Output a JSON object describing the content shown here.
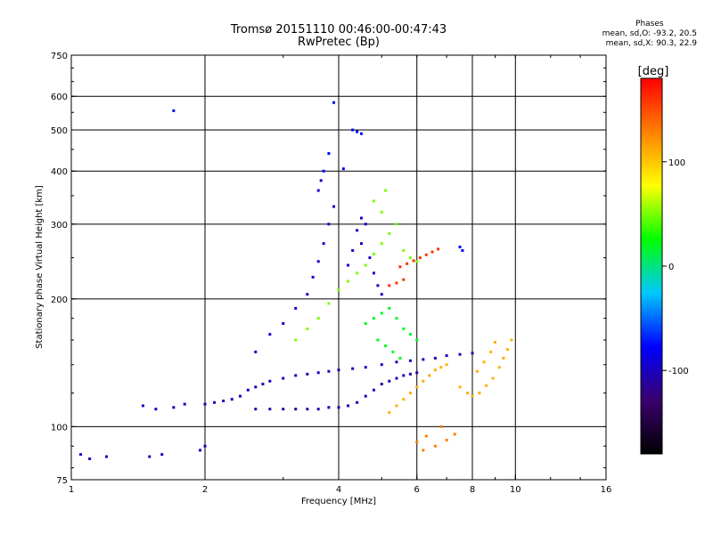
{
  "chart_data": {
    "type": "scatter",
    "title": "Tromsø 20151110 00:46:00-00:47:43",
    "subtitle": "RwPretec (Bp)",
    "xlabel": "Frequency [MHz]",
    "ylabel": "Stationary phase Virtual Height [km]",
    "x_scale": "log",
    "y_scale": "log",
    "xlim": [
      1,
      16
    ],
    "ylim": [
      75,
      750
    ],
    "x_ticks": [
      1,
      2,
      4,
      6,
      8,
      10,
      16
    ],
    "x_tick_labels": [
      "1",
      "2",
      "4",
      "6",
      "8",
      "10",
      "16"
    ],
    "x_grid": [
      2,
      4,
      6,
      8,
      10
    ],
    "y_ticks": [
      75,
      100,
      200,
      300,
      400,
      500,
      600,
      750
    ],
    "y_tick_labels": [
      "75",
      "100",
      "200",
      "300",
      "400",
      "500",
      "600",
      "750"
    ],
    "y_grid": [
      100,
      200,
      300,
      400,
      500,
      600
    ],
    "grid": true,
    "colorbar": {
      "label": "[deg]",
      "range": [
        -180,
        180
      ],
      "ticks": [
        100,
        0,
        -100
      ],
      "tick_labels": [
        "100",
        "0",
        "-100"
      ],
      "colormap": [
        "#000000",
        "#3a006e",
        "#0000ff",
        "#00c8ff",
        "#00ff00",
        "#ffff00",
        "#ff8000",
        "#ff0000"
      ]
    },
    "phases": {
      "heading": "Phases",
      "o_line": "mean, sd,O: -93.2, 20.5",
      "x_line": "mean, sd,X:  90.3, 22.9"
    },
    "series": [
      {
        "points": [
          [
            2.0,
            113
          ],
          [
            2.1,
            114
          ],
          [
            2.2,
            115
          ],
          [
            2.3,
            116
          ],
          [
            2.4,
            118
          ],
          [
            2.5,
            122
          ],
          [
            2.6,
            124
          ],
          [
            2.7,
            126
          ],
          [
            2.8,
            128
          ],
          [
            3.0,
            130
          ],
          [
            3.2,
            132
          ],
          [
            3.4,
            133
          ],
          [
            3.6,
            134
          ],
          [
            3.8,
            135
          ],
          [
            4.0,
            136
          ],
          [
            4.3,
            137
          ],
          [
            4.6,
            138
          ],
          [
            5.0,
            140
          ],
          [
            5.4,
            142
          ],
          [
            5.8,
            143
          ],
          [
            6.2,
            144
          ],
          [
            6.6,
            145
          ],
          [
            7.0,
            147
          ],
          [
            7.5,
            148
          ],
          [
            8.0,
            149
          ]
        ],
        "phase": -100
      },
      {
        "points": [
          [
            2.6,
            110
          ],
          [
            2.8,
            110
          ],
          [
            3.0,
            110
          ],
          [
            3.2,
            110
          ],
          [
            3.4,
            110
          ],
          [
            3.6,
            110
          ],
          [
            3.8,
            111
          ],
          [
            4.0,
            111
          ],
          [
            4.2,
            112
          ],
          [
            4.4,
            114
          ],
          [
            4.6,
            118
          ],
          [
            4.8,
            122
          ],
          [
            5.0,
            126
          ],
          [
            5.2,
            128
          ],
          [
            5.4,
            130
          ],
          [
            5.6,
            132
          ],
          [
            5.8,
            133
          ],
          [
            6.0,
            134
          ]
        ],
        "phase": -105
      },
      {
        "points": [
          [
            2.6,
            150
          ],
          [
            2.8,
            165
          ],
          [
            3.0,
            175
          ],
          [
            3.2,
            190
          ],
          [
            3.4,
            205
          ],
          [
            3.5,
            225
          ],
          [
            3.6,
            245
          ],
          [
            3.7,
            270
          ],
          [
            3.8,
            300
          ],
          [
            3.9,
            330
          ],
          [
            3.6,
            360
          ],
          [
            3.65,
            380
          ],
          [
            4.2,
            240
          ],
          [
            4.3,
            260
          ],
          [
            4.4,
            290
          ],
          [
            4.5,
            310
          ],
          [
            4.6,
            300
          ],
          [
            4.5,
            270
          ],
          [
            4.7,
            250
          ],
          [
            4.8,
            230
          ],
          [
            4.9,
            215
          ],
          [
            5.0,
            205
          ]
        ],
        "phase": -95
      },
      {
        "points": [
          [
            3.2,
            160
          ],
          [
            3.4,
            170
          ],
          [
            3.6,
            180
          ],
          [
            3.8,
            195
          ],
          [
            4.0,
            210
          ],
          [
            4.2,
            220
          ],
          [
            4.4,
            230
          ],
          [
            4.6,
            240
          ],
          [
            4.8,
            255
          ],
          [
            5.0,
            270
          ],
          [
            5.2,
            285
          ],
          [
            5.4,
            300
          ],
          [
            5.0,
            320
          ],
          [
            4.8,
            340
          ],
          [
            5.1,
            360
          ],
          [
            5.6,
            260
          ],
          [
            5.8,
            250
          ],
          [
            6.0,
            245
          ]
        ],
        "phase": 50
      },
      {
        "points": [
          [
            5.5,
            238
          ],
          [
            5.7,
            242
          ],
          [
            5.9,
            246
          ],
          [
            6.1,
            250
          ],
          [
            6.3,
            254
          ],
          [
            6.5,
            258
          ],
          [
            6.7,
            262
          ],
          [
            5.2,
            215
          ],
          [
            5.4,
            218
          ],
          [
            5.6,
            222
          ]
        ],
        "phase": 160
      },
      {
        "points": [
          [
            5.2,
            108
          ],
          [
            5.4,
            112
          ],
          [
            5.6,
            116
          ],
          [
            5.8,
            120
          ],
          [
            6.0,
            124
          ],
          [
            6.2,
            128
          ],
          [
            6.4,
            132
          ],
          [
            6.6,
            136
          ],
          [
            6.8,
            138
          ],
          [
            7.0,
            140
          ],
          [
            7.5,
            124
          ],
          [
            7.8,
            120
          ],
          [
            8.0,
            118
          ],
          [
            8.3,
            120
          ],
          [
            8.6,
            125
          ],
          [
            8.9,
            130
          ],
          [
            9.2,
            138
          ],
          [
            9.4,
            145
          ],
          [
            9.6,
            152
          ],
          [
            9.8,
            160
          ],
          [
            8.2,
            135
          ],
          [
            8.5,
            142
          ],
          [
            8.8,
            150
          ],
          [
            9.0,
            158
          ]
        ],
        "phase": 110
      },
      {
        "points": [
          [
            1.45,
            112
          ],
          [
            1.55,
            110
          ],
          [
            1.7,
            111
          ],
          [
            1.8,
            113
          ],
          [
            1.05,
            86
          ],
          [
            1.1,
            84
          ],
          [
            1.2,
            85
          ],
          [
            1.5,
            85
          ],
          [
            1.6,
            86
          ],
          [
            1.95,
            88
          ],
          [
            2.0,
            90
          ]
        ],
        "phase": -100
      },
      {
        "points": [
          [
            4.3,
            500
          ],
          [
            4.4,
            495
          ],
          [
            4.5,
            490
          ],
          [
            1.7,
            555
          ],
          [
            4.1,
            405
          ],
          [
            3.7,
            400
          ],
          [
            3.8,
            440
          ],
          [
            3.9,
            580
          ],
          [
            7.5,
            265
          ],
          [
            7.6,
            260
          ]
        ],
        "phase": -80
      },
      {
        "points": [
          [
            4.6,
            175
          ],
          [
            4.8,
            180
          ],
          [
            5.0,
            185
          ],
          [
            5.2,
            190
          ],
          [
            5.4,
            180
          ],
          [
            5.6,
            170
          ],
          [
            5.8,
            165
          ],
          [
            6.0,
            160
          ],
          [
            4.9,
            160
          ],
          [
            5.1,
            155
          ],
          [
            5.3,
            150
          ],
          [
            5.5,
            145
          ]
        ],
        "phase": 20
      },
      {
        "points": [
          [
            6.0,
            92
          ],
          [
            6.3,
            95
          ],
          [
            6.6,
            90
          ],
          [
            7.0,
            93
          ],
          [
            7.3,
            96
          ],
          [
            6.8,
            100
          ],
          [
            6.2,
            88
          ]
        ],
        "phase": 130
      }
    ]
  }
}
